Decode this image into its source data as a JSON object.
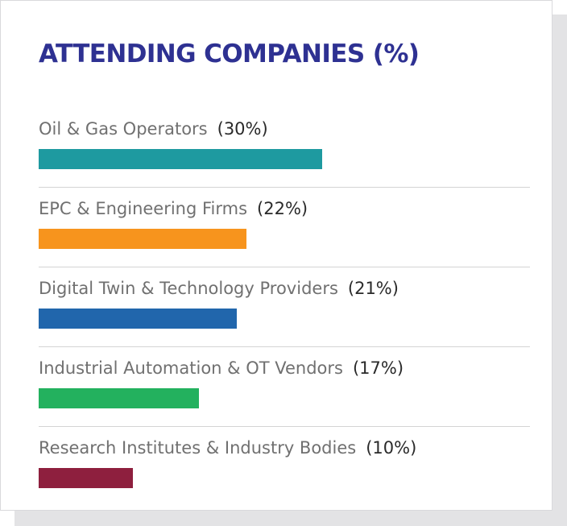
{
  "title": "ATTENDING COMPANIES (%)",
  "chart_data": {
    "type": "bar",
    "orientation": "horizontal",
    "title": "ATTENDING COMPANIES (%)",
    "categories": [
      "Oil & Gas Operators",
      "EPC & Engineering Firms",
      "Digital Twin & Technology Providers",
      "Industrial Automation & OT Vendors",
      "Research Institutes & Industry Bodies"
    ],
    "values": [
      30,
      22,
      21,
      17,
      10
    ],
    "value_labels": [
      "(30%)",
      "(22%)",
      "(21%)",
      "(17%)",
      "(10%)"
    ],
    "colors": [
      "#1e9aa0",
      "#f7941d",
      "#2166ac",
      "#23b15e",
      "#8e1f3e"
    ],
    "xlim": [
      0,
      52
    ],
    "grid": false,
    "legend": "none"
  }
}
